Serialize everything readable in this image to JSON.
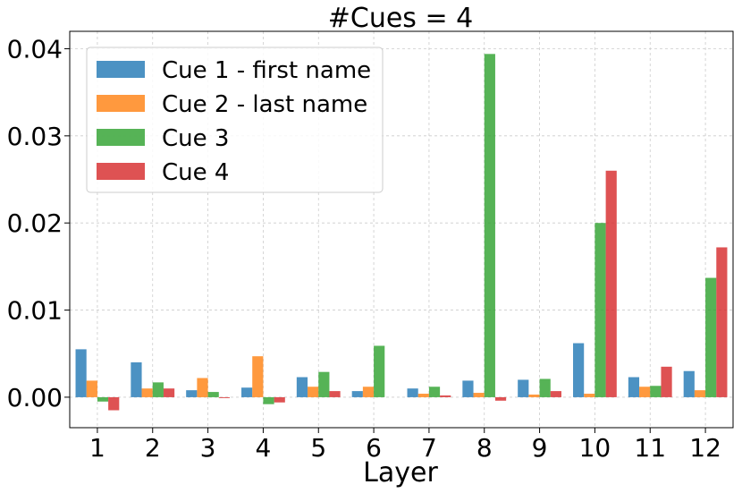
{
  "chart_data": {
    "type": "bar",
    "title": "#Cues = 4",
    "xlabel": "Layer",
    "ylabel": "",
    "categories": [
      "1",
      "2",
      "3",
      "4",
      "5",
      "6",
      "7",
      "8",
      "9",
      "10",
      "11",
      "12"
    ],
    "ylim": [
      -0.0035,
      0.042
    ],
    "yticks": [
      "0.00",
      "0.01",
      "0.02",
      "0.03",
      "0.04"
    ],
    "ytick_values": [
      0,
      0.01,
      0.02,
      0.03,
      0.04
    ],
    "grid": true,
    "legend_position": "top-left",
    "series": [
      {
        "name": "Cue 1 - first name",
        "color": "#1f77b4",
        "values": [
          0.0055,
          0.004,
          0.0008,
          0.0011,
          0.0023,
          0.0007,
          0.001,
          0.0019,
          0.002,
          0.0062,
          0.0023,
          0.003
        ]
      },
      {
        "name": "Cue 2 - last name",
        "color": "#ff7f0e",
        "values": [
          0.0019,
          0.001,
          0.0022,
          0.0047,
          0.0012,
          0.0012,
          0.0004,
          0.0005,
          0.0003,
          0.0004,
          0.0012,
          0.0008
        ]
      },
      {
        "name": "Cue 3",
        "color": "#2ca02c",
        "values": [
          -0.0005,
          0.0017,
          0.0006,
          -0.0008,
          0.0029,
          0.0059,
          0.0012,
          0.0394,
          0.0021,
          0.02,
          0.0013,
          0.0137
        ]
      },
      {
        "name": "Cue 4",
        "color": "#d62728",
        "values": [
          -0.0015,
          0.001,
          -0.0001,
          -0.0006,
          0.0007,
          0.0,
          0.0002,
          -0.0004,
          0.0007,
          0.026,
          0.0035,
          0.0172
        ]
      }
    ]
  }
}
